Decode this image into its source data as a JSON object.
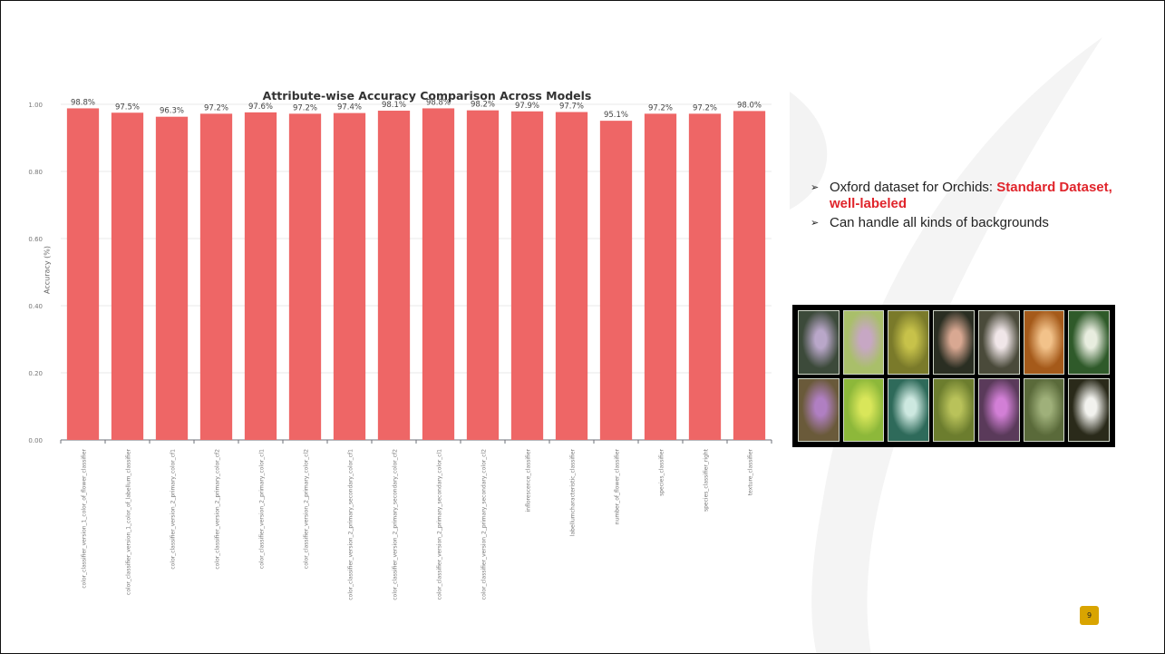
{
  "chart_data": {
    "type": "bar",
    "title": "Attribute-wise Accuracy Comparison Across Models",
    "xlabel": "",
    "ylabel": "Accuracy (%)",
    "ylim": [
      0,
      1.0
    ],
    "yticks": [
      "0.00",
      "0.20",
      "0.40",
      "0.60",
      "0.80",
      "1.00"
    ],
    "grid": true,
    "bar_color": "#ee6666",
    "categories": [
      "color_classifier_version_1_color_of_flower_classifier",
      "color_classifier_version_1_color_of_labellum_classifier",
      "color_classifier_version_2_primary_color_cf1",
      "color_classifier_version_2_primary_color_cf2",
      "color_classifier_version_2_primary_color_cl1",
      "color_classifier_version_2_primary_color_cl2",
      "color_classifier_version_2_primary_secondary_color_cf1",
      "color_classifier_version_2_primary_secondary_color_cf2",
      "color_classifier_version_2_primary_secondary_color_cl1",
      "color_classifier_version_2_primary_secondary_color_cl2",
      "inflorescence_classifier",
      "labellumcharacteristic_classifier",
      "number_of_flower_classifier",
      "species_classifier",
      "species_classifier_right",
      "texture_classifier"
    ],
    "values": [
      0.988,
      0.975,
      0.963,
      0.972,
      0.976,
      0.972,
      0.974,
      0.981,
      0.988,
      0.982,
      0.979,
      0.977,
      0.951,
      0.972,
      0.972,
      0.98
    ],
    "data_labels": [
      "98.8%",
      "97.5%",
      "96.3%",
      "97.2%",
      "97.6%",
      "97.2%",
      "97.4%",
      "98.1%",
      "98.8%",
      "98.2%",
      "97.9%",
      "97.7%",
      "95.1%",
      "97.2%",
      "97.2%",
      "98.0%"
    ]
  },
  "bullets": [
    {
      "text": "Oxford dataset for Orchids: ",
      "highlight": "Standard Dataset, well-labeled"
    },
    {
      "text": "Can handle all kinds of backgrounds",
      "highlight": ""
    }
  ],
  "gallery": {
    "thumbnails": [
      {
        "colors": [
          "#3c4a3a",
          "#b9a7c9"
        ]
      },
      {
        "colors": [
          "#a9bf6a",
          "#c7a7c4"
        ]
      },
      {
        "colors": [
          "#7a7a2a",
          "#c7c24a"
        ]
      },
      {
        "colors": [
          "#2a2e22",
          "#d9a892"
        ]
      },
      {
        "colors": [
          "#4a4a3a",
          "#f0e6e8"
        ]
      },
      {
        "colors": [
          "#a55a1a",
          "#f2c28a"
        ]
      },
      {
        "colors": [
          "#2f5a2a",
          "#e8eddf"
        ]
      },
      {
        "colors": [
          "#6a5a3a",
          "#b07fc2"
        ]
      },
      {
        "colors": [
          "#8db83a",
          "#d9e65a"
        ]
      },
      {
        "colors": [
          "#2e6a5a",
          "#cde8e0"
        ]
      },
      {
        "colors": [
          "#6c7d2e",
          "#b9c25a"
        ]
      },
      {
        "colors": [
          "#5a3a5a",
          "#d27fd6"
        ]
      },
      {
        "colors": [
          "#5a6a3a",
          "#9fb07a"
        ]
      },
      {
        "colors": [
          "#2a2a1a",
          "#f2f2ee"
        ]
      }
    ]
  },
  "page_number": "9"
}
